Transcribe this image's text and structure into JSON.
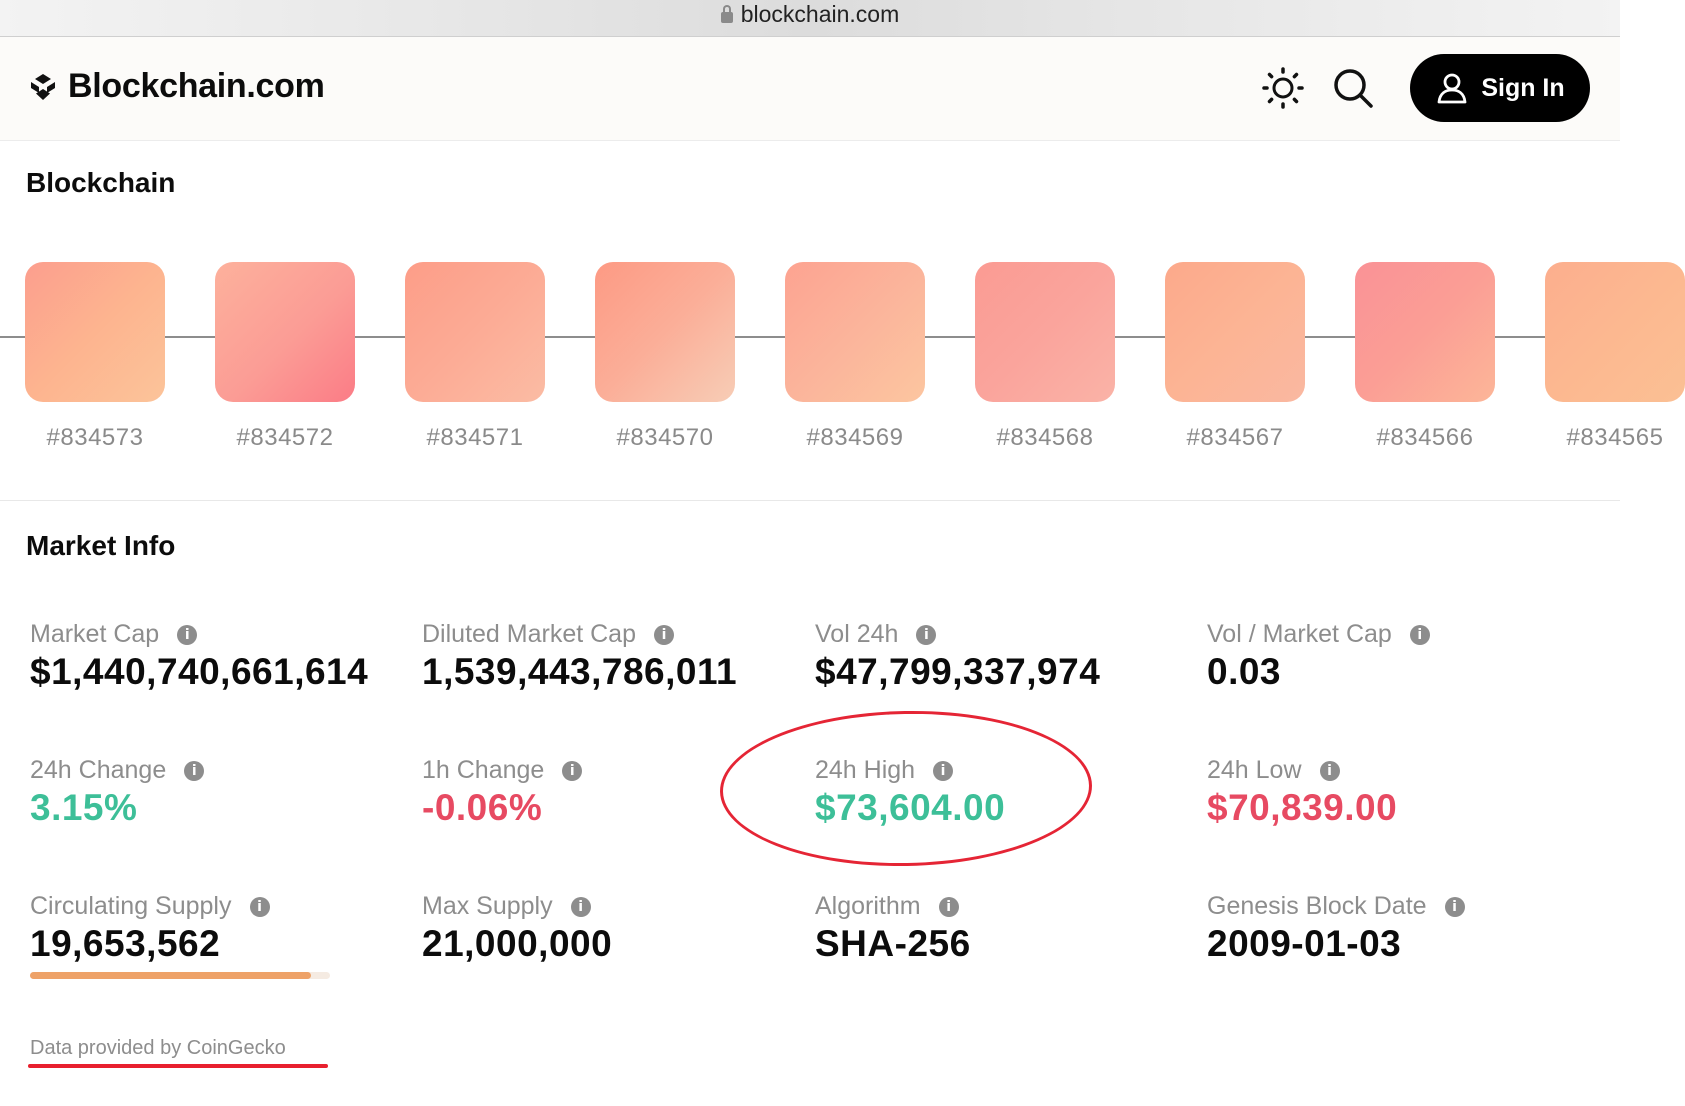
{
  "browser": {
    "url": "blockchain.com"
  },
  "header": {
    "brand": "Blockchain.com",
    "sign_in_label": "Sign In"
  },
  "blockchain": {
    "title": "Blockchain",
    "blocks": [
      {
        "label": "#834573",
        "gradient": "linear-gradient(135deg,#fc9e8e 0%,#fdb48f 50%,#fcc49a 100%)"
      },
      {
        "label": "#834572",
        "gradient": "linear-gradient(135deg,#fdb19c 0%,#fb9c95 55%,#fb7c86 100%)"
      },
      {
        "label": "#834571",
        "gradient": "linear-gradient(135deg,#fd9d88 0%,#fcab95 50%,#fbbca4 100%)"
      },
      {
        "label": "#834570",
        "gradient": "linear-gradient(135deg,#fd9a84 0%,#fbae98 50%,#f7cdb6 100%)"
      },
      {
        "label": "#834569",
        "gradient": "linear-gradient(135deg,#fda391 0%,#fbb49b 50%,#fcc6a0 100%)"
      },
      {
        "label": "#834568",
        "gradient": "linear-gradient(135deg,#fb9b93 0%,#faa49c 50%,#fab3a7 100%)"
      },
      {
        "label": "#834567",
        "gradient": "linear-gradient(135deg,#fca98b 0%,#fcb494 50%,#fab8a1 100%)"
      },
      {
        "label": "#834566",
        "gradient": "linear-gradient(135deg,#fa9296 0%,#fb9e95 50%,#fcb698 100%)"
      },
      {
        "label": "#834565",
        "gradient": "linear-gradient(135deg,#fcae8e 0%,#fcb890 50%,#fbc094 100%)"
      }
    ]
  },
  "market": {
    "title": "Market Info",
    "metrics": [
      {
        "label": "Market Cap",
        "value": "$1,440,740,661,614"
      },
      {
        "label": "Diluted Market Cap",
        "value": "1,539,443,786,011"
      },
      {
        "label": "Vol 24h",
        "value": "$47,799,337,974"
      },
      {
        "label": "Vol / Market Cap",
        "value": "0.03"
      },
      {
        "label": "24h Change",
        "value": "3.15%"
      },
      {
        "label": "1h Change",
        "value": "-0.06%"
      },
      {
        "label": "24h High",
        "value": "$73,604.00"
      },
      {
        "label": "24h Low",
        "value": "$70,839.00"
      },
      {
        "label": "Circulating Supply",
        "value": "19,653,562"
      },
      {
        "label": "Max Supply",
        "value": "21,000,000"
      },
      {
        "label": "Algorithm",
        "value": "SHA-256"
      },
      {
        "label": "Genesis Block Date",
        "value": "2009-01-03"
      }
    ],
    "supply_progress": 0.936,
    "credit": "Data provided by CoinGecko"
  },
  "colors": {
    "positive": "#3dbf98",
    "negative": "#e74a62",
    "annotation": "#e52535"
  }
}
